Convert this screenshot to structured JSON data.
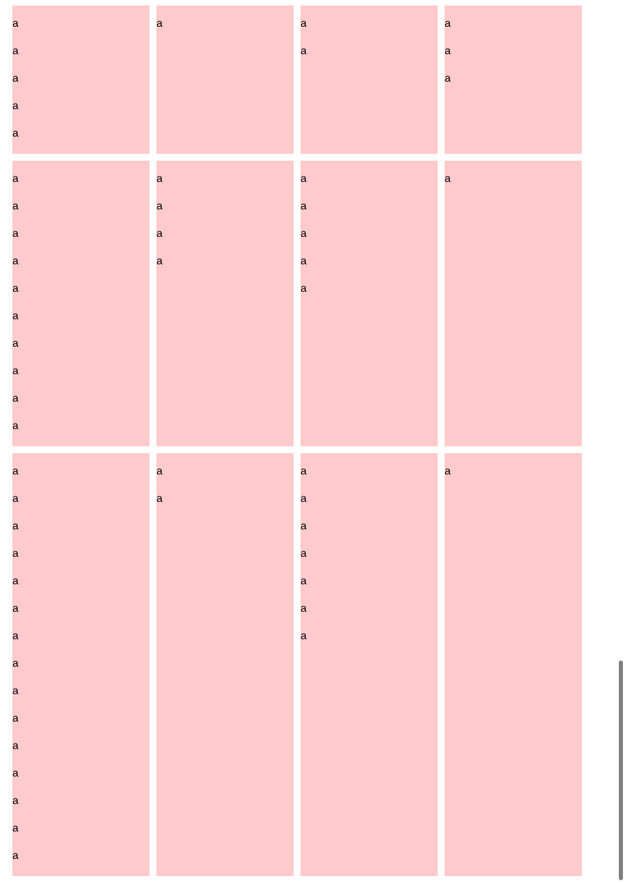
{
  "grid": {
    "rows": [
      {
        "cells": [
          {
            "lines": [
              "a",
              "a",
              "a",
              "a",
              "a"
            ]
          },
          {
            "lines": [
              "a"
            ]
          },
          {
            "lines": [
              "a",
              "a"
            ]
          },
          {
            "lines": [
              "a",
              "a",
              "a"
            ]
          }
        ]
      },
      {
        "cells": [
          {
            "lines": [
              "a",
              "a",
              "a",
              "a",
              "a",
              "a",
              "a",
              "a",
              "a",
              "a"
            ]
          },
          {
            "lines": [
              "a",
              "a",
              "a",
              "a"
            ]
          },
          {
            "lines": [
              "a",
              "a",
              "a",
              "a",
              "a"
            ]
          },
          {
            "lines": [
              "a"
            ]
          }
        ]
      },
      {
        "cells": [
          {
            "lines": [
              "a",
              "a",
              "a",
              "a",
              "a",
              "a",
              "a",
              "a",
              "a",
              "a",
              "a",
              "a",
              "a",
              "a",
              "a"
            ]
          },
          {
            "lines": [
              "a",
              "a"
            ]
          },
          {
            "lines": [
              "a",
              "a",
              "a",
              "a",
              "a",
              "a",
              "a"
            ]
          },
          {
            "lines": [
              "a"
            ]
          }
        ]
      }
    ]
  },
  "colors": {
    "cell_background": "#fecacb",
    "scrollbar_thumb": "#7f7f7f",
    "page_background": "#ffffff"
  },
  "scrollbar": {
    "position": 1.0
  }
}
